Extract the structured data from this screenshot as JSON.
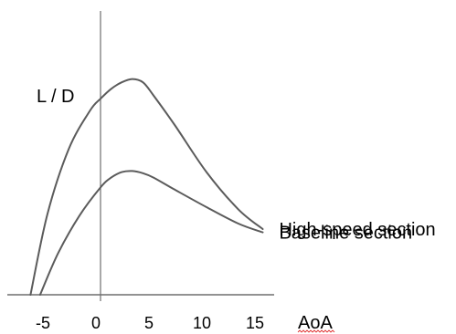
{
  "chart_data": {
    "type": "line",
    "ylabel": "L / D",
    "xlabel": "AoA",
    "xlim": [
      -8,
      19
    ],
    "ylim": [
      0,
      2.6
    ],
    "x_ticks": [
      "-5",
      "0",
      "5",
      "10",
      "15"
    ],
    "x_tick_values": [
      -5,
      0,
      5,
      10,
      15
    ],
    "y_ticks": [],
    "grid": false,
    "legend": "labels at right end of each curve",
    "series": [
      {
        "name": "High-speed section",
        "color": "#5b5b5b",
        "x": [
          -6.6,
          -5,
          -3,
          -1,
          0,
          1,
          2,
          3,
          4,
          5,
          7,
          10,
          13,
          15.3
        ],
        "y": [
          0,
          0.74,
          1.33,
          1.68,
          1.79,
          1.88,
          1.94,
          1.97,
          1.94,
          1.82,
          1.55,
          1.12,
          0.78,
          0.6
        ]
      },
      {
        "name": "Baseline section",
        "color": "#5b5b5b",
        "x": [
          -5.7,
          -4,
          -2,
          0,
          1,
          2,
          3,
          4,
          5,
          7,
          10,
          13,
          15.3
        ],
        "y": [
          0,
          0.38,
          0.72,
          0.98,
          1.07,
          1.12,
          1.13,
          1.11,
          1.07,
          0.96,
          0.8,
          0.65,
          0.57
        ]
      }
    ]
  }
}
